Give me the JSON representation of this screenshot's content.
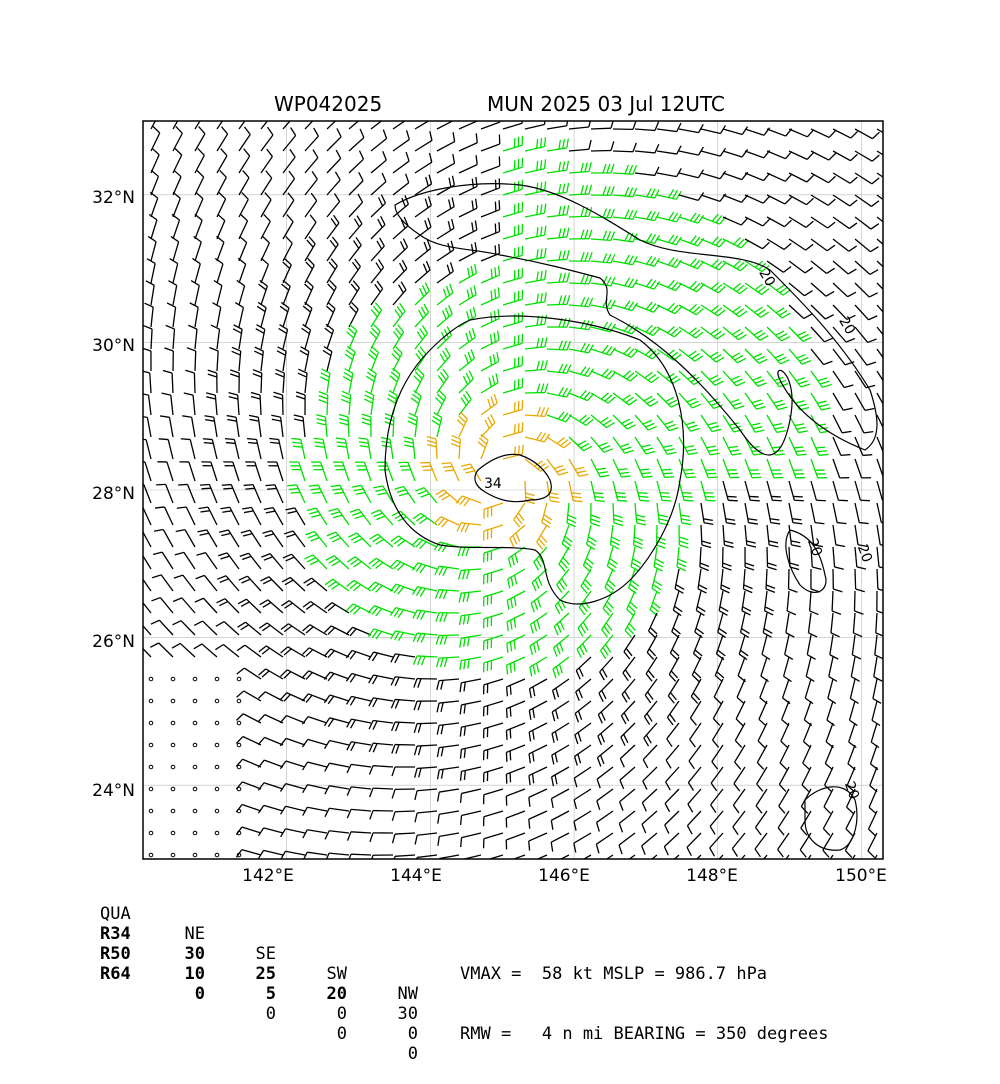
{
  "title": {
    "storm_id": "WP042025",
    "model_time": "MUN 2025 03 Jul 12UTC"
  },
  "map": {
    "lat_ticks": [
      "32°N",
      "30°N",
      "28°N",
      "26°N",
      "24°N"
    ],
    "lon_ticks": [
      "142°E",
      "144°E",
      "146°E",
      "148°E",
      "150°E"
    ],
    "lat_values": [
      32,
      30,
      28,
      26,
      24
    ],
    "lon_values": [
      142,
      144,
      146,
      148,
      150
    ],
    "lon_range": [
      140,
      150.3
    ],
    "lat_range": [
      23,
      33
    ],
    "storm_center": {
      "lon": 145.0,
      "lat": 28.2
    },
    "contour_labels": [
      "20",
      "20",
      "20",
      "20",
      "20",
      "34"
    ],
    "colors": {
      "barb_default": "#000000",
      "barb_34kt": "#00e000",
      "barb_50kt": "#e8a800",
      "grid": "#bbbbbb"
    }
  },
  "wind_radii": {
    "header": [
      "QUA",
      "NE",
      "SE",
      "SW",
      "NW"
    ],
    "rows": [
      {
        "label": "R34",
        "values": [
          "30",
          "25",
          "20",
          "30"
        ]
      },
      {
        "label": "R50",
        "values": [
          "10",
          "5",
          "0",
          "0"
        ]
      },
      {
        "label": "R64",
        "values": [
          "0",
          "0",
          "0",
          "0"
        ]
      }
    ]
  },
  "summary": {
    "line1": "VMAX =  58 kt MSLP = 986.7 hPa",
    "line2": "RMW =   4 n mi BEARING = 350 degrees"
  }
}
